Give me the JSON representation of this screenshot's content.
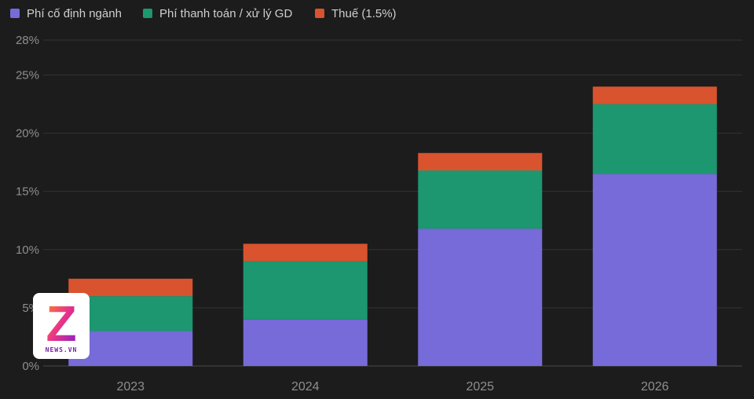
{
  "chart_data": {
    "type": "bar",
    "stacked": true,
    "categories": [
      "2023",
      "2024",
      "2025",
      "2026"
    ],
    "series": [
      {
        "name": "Phí cố định ngành",
        "color": "#766bd9",
        "values": [
          3.0,
          4.0,
          11.8,
          16.5
        ]
      },
      {
        "name": "Phí thanh toán / xử lý GD",
        "color": "#1c9770",
        "values": [
          3.0,
          5.0,
          5.0,
          6.0
        ]
      },
      {
        "name": "Thuế (1.5%)",
        "color": "#d9532e",
        "values": [
          1.5,
          1.5,
          1.5,
          1.5
        ]
      }
    ],
    "ylim": [
      0,
      28
    ],
    "yticks": [
      0,
      5,
      10,
      15,
      20,
      25,
      28
    ],
    "ytick_labels": [
      "0%",
      "5%",
      "10%",
      "15%",
      "20%",
      "25%",
      "28%"
    ],
    "grid": true,
    "legend_position": "top-left"
  },
  "watermark": {
    "letter": "Z",
    "text": "NEWS.VN"
  }
}
